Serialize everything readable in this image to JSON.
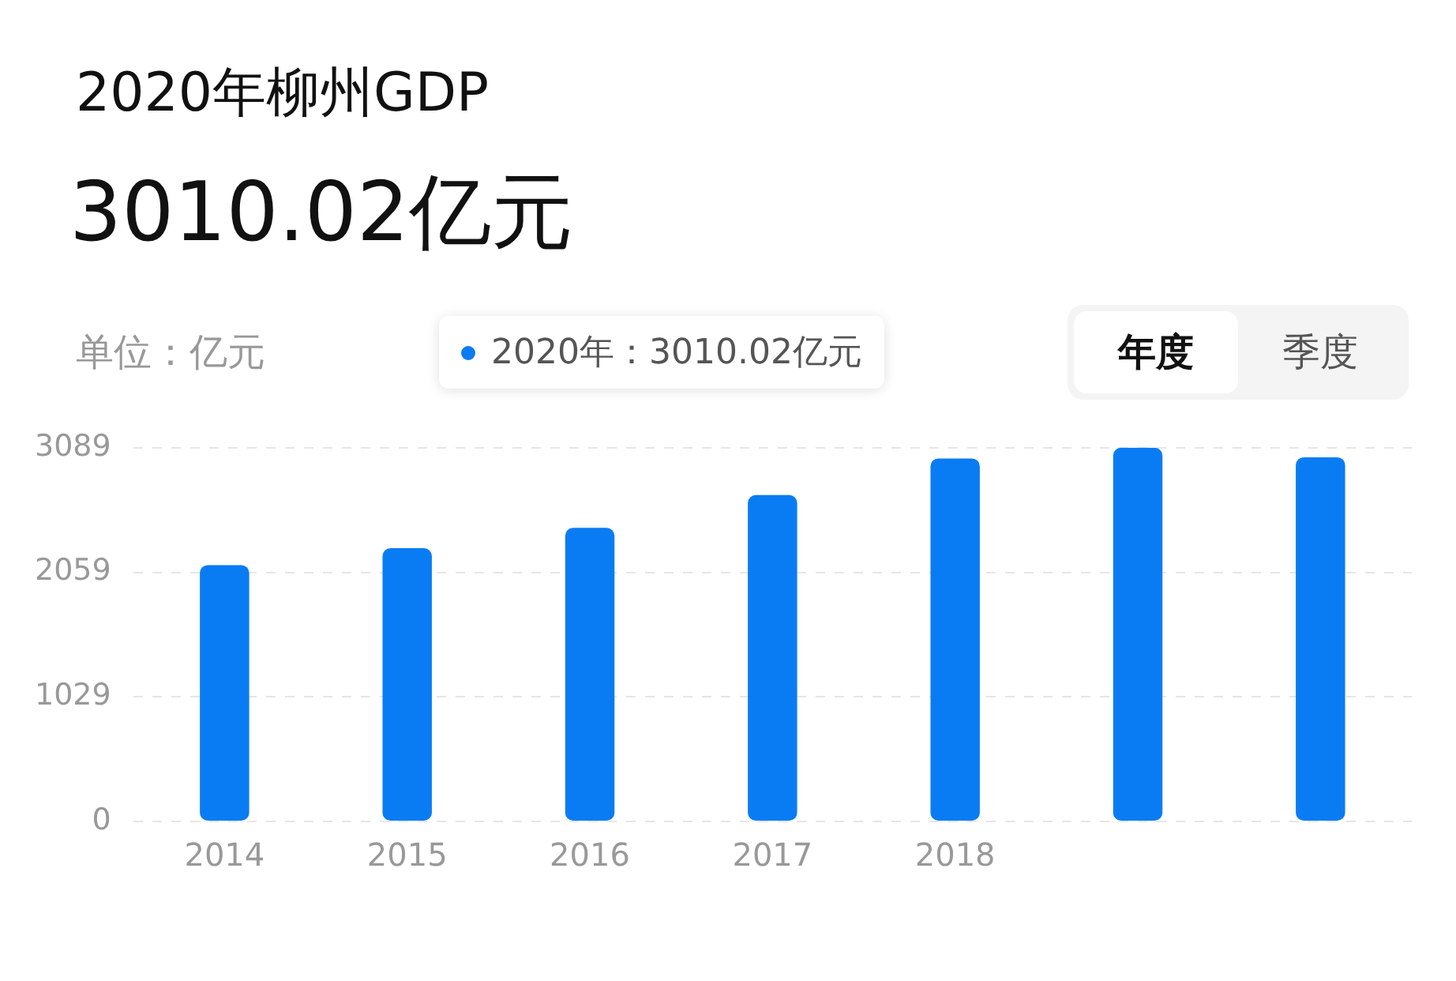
{
  "chart_data": {
    "type": "bar",
    "title": "2020年柳州GDP",
    "subtitle": "3010.02亿元",
    "ylabel": "单位：亿元",
    "annotations": [
      "2020年：3010.02亿元",
      "年度",
      "季度"
    ],
    "categories": [
      "2014",
      "2015",
      "2016",
      "2017",
      "2018",
      null,
      null
    ],
    "values": [
      2119,
      2259,
      2427,
      2697,
      3000,
      3089,
      3010
    ],
    "color": "#0a7cf3",
    "ylim": [
      0,
      3089
    ],
    "yticks": [
      0,
      1029,
      2059,
      3089
    ],
    "grid": "y"
  }
}
